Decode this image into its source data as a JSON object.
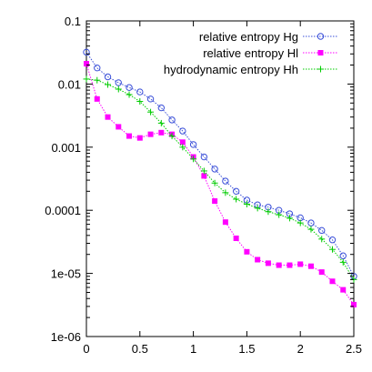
{
  "chart_data": {
    "type": "line",
    "title": "",
    "xlabel": "",
    "ylabel": "",
    "xlim": [
      0,
      2.5
    ],
    "ylim": [
      1e-06,
      0.1
    ],
    "yscale": "log",
    "grid": false,
    "legend_position": "top-right",
    "x_ticks": [
      0,
      0.5,
      1,
      1.5,
      2,
      2.5
    ],
    "x_tick_labels": [
      "0",
      "0.5",
      "1",
      "1.5",
      "2",
      "2.5"
    ],
    "y_ticks": [
      1e-06,
      1e-05,
      0.0001,
      0.001,
      0.01,
      0.1
    ],
    "y_tick_labels": [
      "1e-06",
      "1e-05",
      "0.0001",
      "0.001",
      "0.01",
      "0.1"
    ],
    "series": [
      {
        "name": "relative entropy Hg",
        "color": "#3a4fd8",
        "marker": "circle",
        "line": "dotted",
        "x": [
          0,
          0.1,
          0.2,
          0.3,
          0.4,
          0.5,
          0.6,
          0.7,
          0.8,
          0.9,
          1.0,
          1.1,
          1.2,
          1.3,
          1.4,
          1.5,
          1.6,
          1.7,
          1.8,
          1.9,
          2.0,
          2.1,
          2.2,
          2.3,
          2.4,
          2.5
        ],
        "y": [
          0.032,
          0.018,
          0.013,
          0.0105,
          0.0088,
          0.0075,
          0.0058,
          0.0042,
          0.0027,
          0.0018,
          0.0011,
          0.0007,
          0.00045,
          0.00029,
          0.0002,
          0.000145,
          0.000122,
          0.000112,
          0.0001,
          8.8e-05,
          7.6e-05,
          6.3e-05,
          4.8e-05,
          3.4e-05,
          1.9e-05,
          9e-06
        ]
      },
      {
        "name": "relative entropy Hl",
        "color": "#ff00ff",
        "marker": "square",
        "line": "dotted",
        "x": [
          0,
          0.1,
          0.2,
          0.3,
          0.4,
          0.5,
          0.6,
          0.7,
          0.8,
          0.9,
          1.0,
          1.1,
          1.2,
          1.3,
          1.4,
          1.5,
          1.6,
          1.7,
          1.8,
          1.9,
          2.0,
          2.1,
          2.2,
          2.3,
          2.4,
          2.5
        ],
        "y": [
          0.021,
          0.0058,
          0.003,
          0.0021,
          0.0015,
          0.0014,
          0.0016,
          0.0017,
          0.0016,
          0.0012,
          0.0007,
          0.00035,
          0.00014,
          6.5e-05,
          3.6e-05,
          2.2e-05,
          1.65e-05,
          1.45e-05,
          1.35e-05,
          1.35e-05,
          1.4e-05,
          1.3e-05,
          1.05e-05,
          7.5e-06,
          5.5e-06,
          3.2e-06
        ]
      },
      {
        "name": "hydrodynamic entropy Hh",
        "color": "#00cc00",
        "marker": "plus",
        "line": "dotted",
        "x": [
          0,
          0.1,
          0.2,
          0.3,
          0.4,
          0.5,
          0.6,
          0.7,
          0.8,
          0.9,
          1.0,
          1.1,
          1.2,
          1.3,
          1.4,
          1.5,
          1.6,
          1.7,
          1.8,
          1.9,
          2.0,
          2.1,
          2.2,
          2.3,
          2.4,
          2.5
        ],
        "y": [
          0.012,
          0.0115,
          0.0098,
          0.0083,
          0.0068,
          0.0053,
          0.0036,
          0.0024,
          0.0015,
          0.001,
          0.00065,
          0.00042,
          0.00027,
          0.00019,
          0.00015,
          0.000125,
          0.000108,
          9.5e-05,
          8.5e-05,
          7.5e-05,
          6.3e-05,
          5e-05,
          3.5e-05,
          2.4e-05,
          1.5e-05,
          8e-06
        ]
      }
    ]
  }
}
